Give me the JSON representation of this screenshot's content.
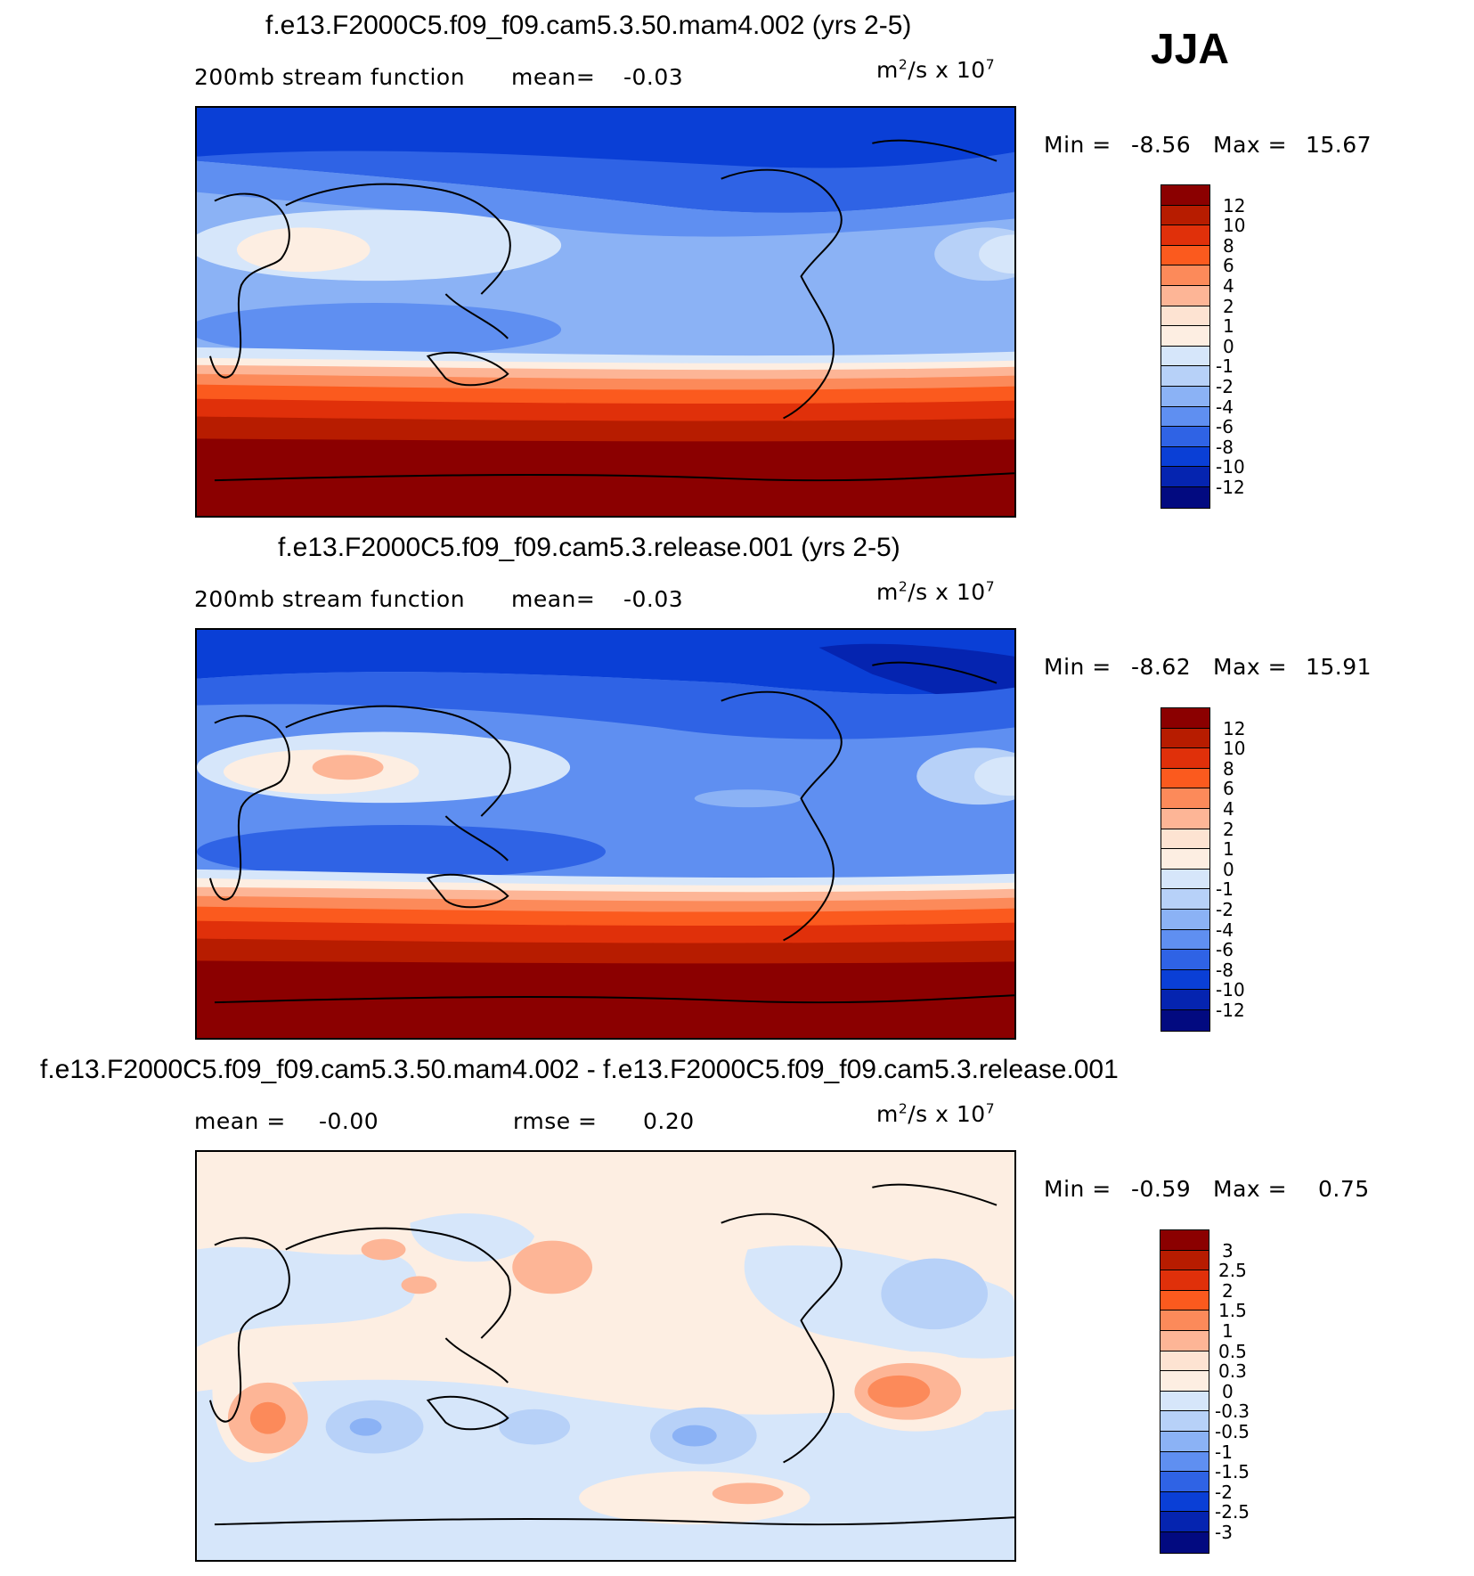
{
  "season": "JJA",
  "units_prefix": "m",
  "units_sup1": "2",
  "units_mid": "/s x 10",
  "units_sup2": "7",
  "panels": [
    {
      "title": "f.e13.F2000C5.f09_f09.cam5.3.50.mam4.002 (yrs 2-5)",
      "variable_label": "200mb stream function",
      "stat_label": "mean=",
      "stat_value": "-0.03",
      "min_label": "Min =",
      "min_value": "-8.56",
      "max_label": "Max =",
      "max_value": "15.67",
      "colorbar_labels": [
        "12",
        "10",
        "8",
        "6",
        "4",
        "2",
        "1",
        "0",
        "-1",
        "-2",
        "-4",
        "-6",
        "-8",
        "-10",
        "-12"
      ]
    },
    {
      "title": "f.e13.F2000C5.f09_f09.cam5.3.release.001 (yrs 2-5)",
      "variable_label": "200mb stream function",
      "stat_label": "mean=",
      "stat_value": "-0.03",
      "min_label": "Min =",
      "min_value": "-8.62",
      "max_label": "Max =",
      "max_value": "15.91",
      "colorbar_labels": [
        "12",
        "10",
        "8",
        "6",
        "4",
        "2",
        "1",
        "0",
        "-1",
        "-2",
        "-4",
        "-6",
        "-8",
        "-10",
        "-12"
      ]
    },
    {
      "title": "f.e13.F2000C5.f09_f09.cam5.3.50.mam4.002 - f.e13.F2000C5.f09_f09.cam5.3.release.001",
      "mean_label": "mean =",
      "mean_value": "-0.00",
      "rmse_label": "rmse =",
      "rmse_value": "0.20",
      "min_label": "Min =",
      "min_value": "-0.59",
      "max_label": "Max =",
      "max_value": "0.75",
      "colorbar_labels": [
        "3",
        "2.5",
        "2",
        "1.5",
        "1",
        "0.5",
        "0.3",
        "0",
        "-0.3",
        "-0.5",
        "-1",
        "-1.5",
        "-2",
        "-2.5",
        "-3"
      ]
    }
  ],
  "colors": {
    "scale": [
      "#8b0000",
      "#b71c00",
      "#e0300a",
      "#fb5a1e",
      "#fc8a5a",
      "#fdb596",
      "#fde3d2",
      "#fdeee2",
      "#d6e6fa",
      "#b7d1f8",
      "#8bb2f5",
      "#5f8ff1",
      "#2f63e5",
      "#0a3fd6",
      "#0524b0",
      "#020a80"
    ]
  }
}
